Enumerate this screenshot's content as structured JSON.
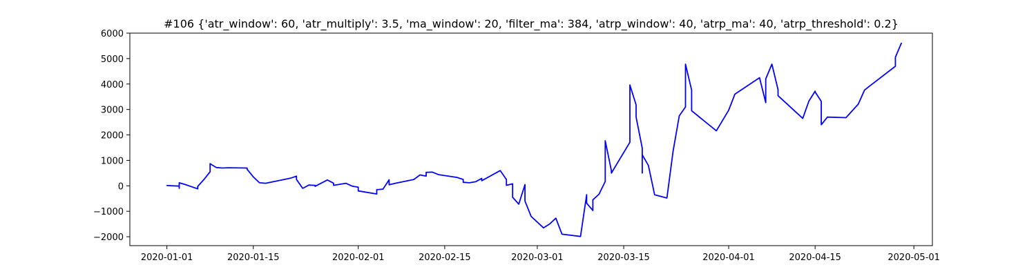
{
  "chart_data": {
    "type": "line",
    "title": "#106 {'atr_window': 60, 'atr_multiply': 3.5, 'ma_window': 20, 'filter_ma': 384, 'atrp_window': 40, 'atrp_ma': 40, 'atrp_threshold': 0.2}",
    "xlabel": "",
    "ylabel": "",
    "xlim": [
      "2019-12-26",
      "2020-05-04"
    ],
    "ylim": [
      -2350,
      6000
    ],
    "x_ticks": [
      "2020-01-01",
      "2020-01-15",
      "2020-02-01",
      "2020-02-15",
      "2020-03-01",
      "2020-03-15",
      "2020-04-01",
      "2020-04-15",
      "2020-05-01"
    ],
    "y_ticks": [
      -2000,
      -1000,
      0,
      1000,
      2000,
      3000,
      4000,
      5000,
      6000
    ],
    "grid": false,
    "colors": {
      "line": "#0000ff"
    },
    "series": [
      {
        "x": [
          "2020-01-01",
          "2020-01-01",
          "2020-01-02",
          "2020-01-03",
          "2020-01-03",
          "2020-01-03",
          "2020-01-04",
          "2020-01-06",
          "2020-01-06",
          "2020-01-07",
          "2020-01-08",
          "2020-01-08",
          "2020-01-09",
          "2020-01-10",
          "2020-01-11",
          "2020-01-14",
          "2020-01-14",
          "2020-01-15",
          "2020-01-16",
          "2020-01-17",
          "2020-01-21",
          "2020-01-22",
          "2020-01-22",
          "2020-01-23",
          "2020-01-24",
          "2020-01-25",
          "2020-01-25",
          "2020-01-27",
          "2020-01-28",
          "2020-01-28",
          "2020-01-30",
          "2020-01-31",
          "2020-02-01",
          "2020-02-01",
          "2020-02-04",
          "2020-02-04",
          "2020-02-05",
          "2020-02-06",
          "2020-02-06",
          "2020-02-07",
          "2020-02-10",
          "2020-02-11",
          "2020-02-12",
          "2020-02-12",
          "2020-02-13",
          "2020-02-14",
          "2020-02-17",
          "2020-02-18",
          "2020-02-18",
          "2020-02-19",
          "2020-02-20",
          "2020-02-21",
          "2020-02-21",
          "2020-02-24",
          "2020-02-25",
          "2020-02-25",
          "2020-02-26",
          "2020-02-26",
          "2020-02-27",
          "2020-02-28",
          "2020-02-28",
          "2020-02-29",
          "2020-03-02",
          "2020-03-03",
          "2020-03-04",
          "2020-03-05",
          "2020-03-08",
          "2020-03-09",
          "2020-03-09",
          "2020-03-10",
          "2020-03-10",
          "2020-03-11",
          "2020-03-12",
          "2020-03-12",
          "2020-03-13",
          "2020-03-13",
          "2020-03-16",
          "2020-03-16",
          "2020-03-17",
          "2020-03-17",
          "2020-03-18",
          "2020-03-18",
          "2020-03-18",
          "2020-03-19",
          "2020-03-20",
          "2020-03-22",
          "2020-03-23",
          "2020-03-24",
          "2020-03-25",
          "2020-03-25",
          "2020-03-26",
          "2020-03-26",
          "2020-03-30",
          "2020-04-01",
          "2020-04-02",
          "2020-04-06",
          "2020-04-07",
          "2020-04-07",
          "2020-04-08",
          "2020-04-09",
          "2020-04-09",
          "2020-04-09",
          "2020-04-13",
          "2020-04-14",
          "2020-04-15",
          "2020-04-15",
          "2020-04-16",
          "2020-04-16",
          "2020-04-17",
          "2020-04-20",
          "2020-04-22",
          "2020-04-23",
          "2020-04-24",
          "2020-04-28",
          "2020-04-28",
          "2020-04-29"
        ],
        "y": [
          0,
          10,
          0,
          -10,
          -100,
          120,
          50,
          -120,
          -20,
          250,
          550,
          870,
          720,
          700,
          710,
          700,
          650,
          350,
          120,
          100,
          300,
          380,
          250,
          -100,
          30,
          20,
          -20,
          230,
          100,
          20,
          100,
          -10,
          -50,
          -200,
          -320,
          -150,
          -130,
          240,
          40,
          100,
          250,
          430,
          380,
          530,
          540,
          440,
          330,
          250,
          140,
          120,
          160,
          290,
          200,
          600,
          250,
          20,
          80,
          -450,
          -720,
          50,
          -600,
          -1200,
          -1650,
          -1500,
          -1270,
          -1900,
          -1990,
          -350,
          -680,
          -970,
          -550,
          -330,
          170,
          1770,
          600,
          500,
          1710,
          3960,
          3180,
          2700,
          1480,
          500,
          1220,
          800,
          -350,
          -480,
          1370,
          2750,
          3100,
          4780,
          3760,
          2950,
          2160,
          2970,
          3600,
          4250,
          3270,
          4200,
          4780,
          3780,
          3540,
          3540,
          2650,
          3330,
          3720,
          3690,
          3320,
          2400,
          2700,
          2680,
          3210,
          3760,
          3950,
          4700,
          5050,
          5620
        ]
      }
    ]
  }
}
